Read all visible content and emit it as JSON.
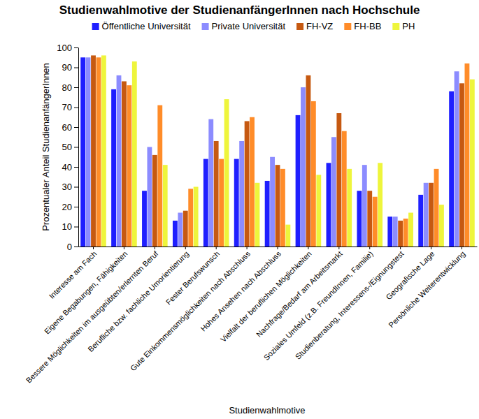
{
  "chart_data": {
    "type": "bar",
    "title": "Studienwahlmotive der StudienanfängerInnen nach Hochschule",
    "x_label": "Studienwahlmotive",
    "y_label": "Prozentualer Anteil StudienanfängerInnen",
    "categories": [
      "Interesse am Fach",
      "Eigene Begabungen, Fähigkeiten",
      "Bessere Möglichkeiten im ausgeübten/erlernten Beruf",
      "Berufliche bzw. fachliche Umorientierung",
      "Fester Berufswunsch",
      "Gute Einkommensmöglichkeiten nach Abschluss",
      "Hohes Ansehen nach Abschluss",
      "Vielfalt der beruflichen Möglichkeiten",
      "Nachfrage/Bedarf am Arbeitsmarkt",
      "Soziales Umfeld (z.B. FreundInnen, Familie)",
      "Studienberatung, Interessens-/Eignungstest",
      "Geografische Lage",
      "Persönliche Weiterentwicklung"
    ],
    "series": [
      {
        "name": "Öffentliche Universität",
        "color": "#1f1fff",
        "values": [
          95,
          79,
          28,
          13,
          44,
          44,
          33,
          66,
          42,
          28,
          15,
          26,
          78
        ]
      },
      {
        "name": "Private Universität",
        "color": "#8c8cff",
        "values": [
          95,
          86,
          50,
          17,
          64,
          53,
          45,
          80,
          55,
          41,
          15,
          32,
          88
        ]
      },
      {
        "name": "FH-VZ",
        "color": "#c65911",
        "values": [
          96,
          83,
          46,
          18,
          53,
          63,
          41,
          86,
          67,
          28,
          13,
          32,
          82
        ]
      },
      {
        "name": "FH-BB",
        "color": "#ff8c29",
        "values": [
          95,
          81,
          71,
          29,
          44,
          65,
          39,
          73,
          58,
          25,
          14,
          39,
          92
        ]
      },
      {
        "name": "PH",
        "color": "#eef53c",
        "values": [
          96,
          93,
          41,
          30,
          74,
          32,
          11,
          36,
          39,
          42,
          17,
          21,
          84
        ]
      }
    ],
    "ylim": [
      0,
      100
    ],
    "yticks": [
      0,
      10,
      20,
      30,
      40,
      50,
      60,
      70,
      80,
      90,
      100
    ],
    "grid": false,
    "legend": "top"
  }
}
